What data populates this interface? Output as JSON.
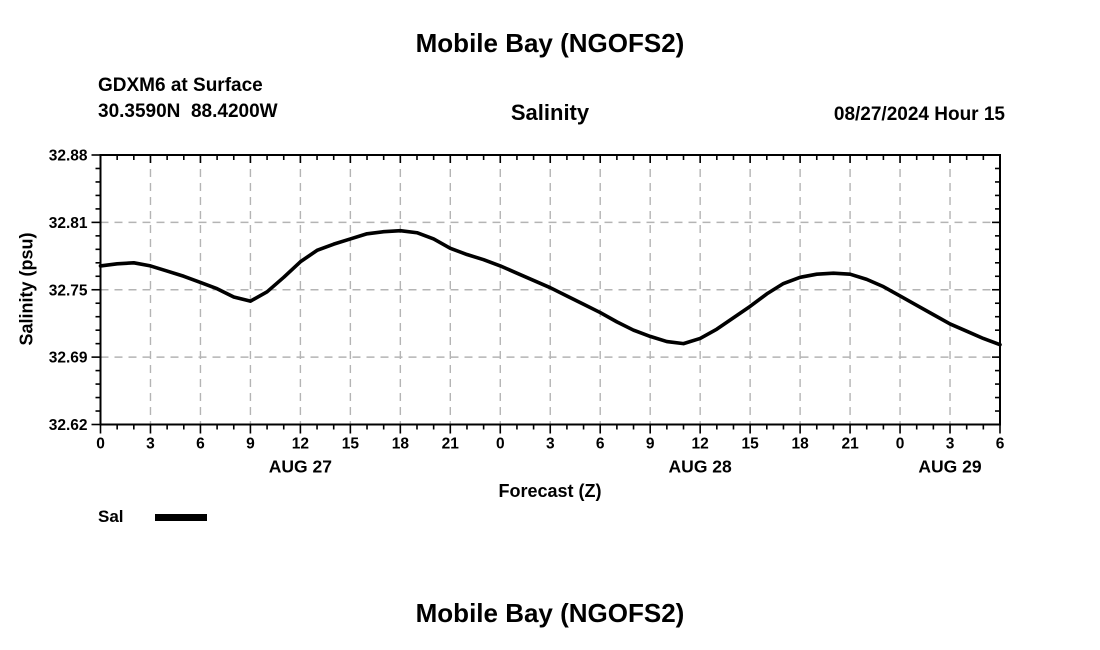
{
  "footer": {
    "next_chart_title": "Mobile Bay (NGOFS2)"
  },
  "chart_data": {
    "type": "line",
    "title": "Mobile Bay (NGOFS2)",
    "station": "GDXM6 at Surface",
    "coordinates": "30.3590N  88.4200W",
    "subtitle": "Salinity",
    "datetime": "08/27/2024 Hour 15",
    "xlabel": "Forecast (Z)",
    "ylabel": "Salinity (psu)",
    "grid": true,
    "grid_color": "#b4b4b4",
    "frame_color": "#000000",
    "legend": {
      "label": "Sal",
      "color": "#000000",
      "position": "bottom-left"
    },
    "x_axis": {
      "domain_hours": [
        0,
        54
      ],
      "major_tick_step_hours": 3,
      "minor_tick_step_hours": 1,
      "tick_labels": [
        "0",
        "3",
        "6",
        "9",
        "12",
        "15",
        "18",
        "21",
        "0",
        "3",
        "6",
        "9",
        "12",
        "15",
        "18",
        "21",
        "0",
        "3",
        "6"
      ],
      "day_labels": [
        {
          "label": "AUG 27",
          "hour": 12
        },
        {
          "label": "AUG 28",
          "hour": 36
        },
        {
          "label": "AUG 29",
          "hour": 51
        }
      ]
    },
    "y_axis": {
      "domain": [
        32.62,
        32.88
      ],
      "major_ticks": [
        32.62,
        32.685,
        32.75,
        32.815,
        32.88
      ],
      "tick_labels": [
        "32.62",
        "32.69",
        "32.75",
        "32.81",
        "32.88"
      ],
      "minor_divisions_per_major": 5
    },
    "series": [
      {
        "name": "Sal",
        "color": "#000000",
        "x_hours": [
          0,
          1,
          2,
          3,
          4,
          5,
          6,
          7,
          8,
          9,
          10,
          11,
          12,
          13,
          14,
          15,
          16,
          17,
          18,
          19,
          20,
          21,
          22,
          23,
          24,
          25,
          26,
          27,
          28,
          29,
          30,
          31,
          32,
          33,
          34,
          35,
          36,
          37,
          38,
          39,
          40,
          41,
          42,
          43,
          44,
          45,
          46,
          47,
          48,
          49,
          50,
          51,
          52,
          53,
          54
        ],
        "values": [
          32.773,
          32.775,
          32.776,
          32.773,
          32.768,
          32.763,
          32.757,
          32.751,
          32.743,
          32.739,
          32.748,
          32.762,
          32.777,
          32.788,
          32.794,
          32.799,
          32.804,
          32.806,
          32.807,
          32.805,
          32.799,
          32.79,
          32.784,
          32.779,
          32.773,
          32.766,
          32.759,
          32.752,
          32.744,
          32.736,
          32.728,
          32.719,
          32.711,
          32.705,
          32.7,
          32.698,
          32.703,
          32.712,
          32.723,
          32.734,
          32.746,
          32.756,
          32.762,
          32.765,
          32.766,
          32.765,
          32.76,
          32.753,
          32.744,
          32.735,
          32.726,
          32.717,
          32.71,
          32.703,
          32.697
        ]
      }
    ]
  }
}
